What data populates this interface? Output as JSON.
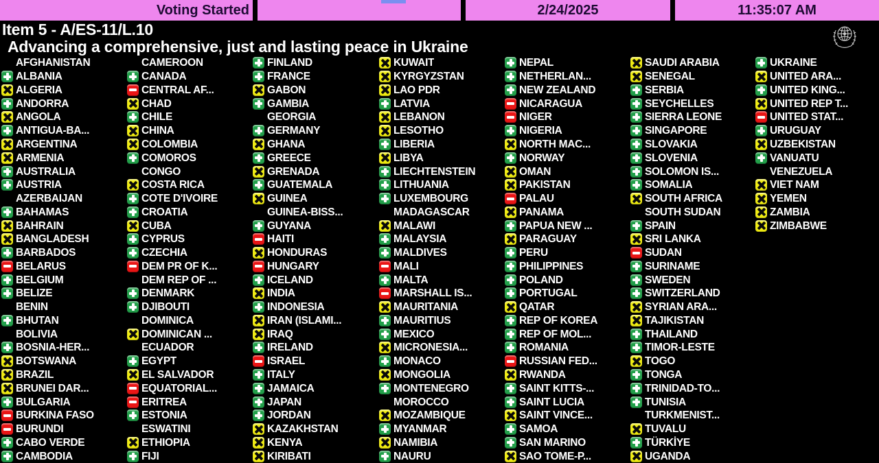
{
  "header": {
    "status": "Voting Started",
    "date": "2/24/2025",
    "time": "11:35:07 AM"
  },
  "title": {
    "item": "Item 5 - A/ES-11/L.10",
    "subtitle": "Advancing a comprehensive, just and lasting peace in Ukraine"
  },
  "icons": {
    "un_emblem": "united-nations-emblem",
    "yes": "green-plus-icon",
    "abstain": "yellow-x-icon",
    "no": "red-minus-icon"
  },
  "colors": {
    "bar_magenta": "#ee86ee",
    "bar_text": "#1d0a33",
    "background": "#000000",
    "text": "#ffffff",
    "vote_yes_green": "#22a04a",
    "vote_abstain_yellow": "#f0ec12",
    "vote_no_red": "#ea1515",
    "blue_mark": "#7a8ff0"
  },
  "columns": [
    [
      {
        "name": "AFGHANISTAN",
        "vote": null
      },
      {
        "name": "ALBANIA",
        "vote": "yes"
      },
      {
        "name": "ALGERIA",
        "vote": "abstain"
      },
      {
        "name": "ANDORRA",
        "vote": "yes"
      },
      {
        "name": "ANGOLA",
        "vote": "abstain"
      },
      {
        "name": "ANTIGUA-BA...",
        "vote": "yes"
      },
      {
        "name": "ARGENTINA",
        "vote": "abstain"
      },
      {
        "name": "ARMENIA",
        "vote": "abstain"
      },
      {
        "name": "AUSTRALIA",
        "vote": "yes"
      },
      {
        "name": "AUSTRIA",
        "vote": "yes"
      },
      {
        "name": "AZERBAIJAN",
        "vote": null
      },
      {
        "name": "BAHAMAS",
        "vote": "yes"
      },
      {
        "name": "BAHRAIN",
        "vote": "abstain"
      },
      {
        "name": "BANGLADESH",
        "vote": "abstain"
      },
      {
        "name": "BARBADOS",
        "vote": "yes"
      },
      {
        "name": "BELARUS",
        "vote": "no"
      },
      {
        "name": "BELGIUM",
        "vote": "yes"
      },
      {
        "name": "BELIZE",
        "vote": "yes"
      },
      {
        "name": "BENIN",
        "vote": null
      },
      {
        "name": "BHUTAN",
        "vote": "yes"
      },
      {
        "name": "BOLIVIA",
        "vote": null
      },
      {
        "name": "BOSNIA-HER...",
        "vote": "yes"
      },
      {
        "name": "BOTSWANA",
        "vote": "abstain"
      },
      {
        "name": "BRAZIL",
        "vote": "abstain"
      },
      {
        "name": "BRUNEI DAR...",
        "vote": "abstain"
      },
      {
        "name": "BULGARIA",
        "vote": "yes"
      },
      {
        "name": "BURKINA FASO",
        "vote": "no"
      },
      {
        "name": "BURUNDI",
        "vote": "no"
      },
      {
        "name": "CABO VERDE",
        "vote": "yes"
      },
      {
        "name": "CAMBODIA",
        "vote": "yes"
      }
    ],
    [
      {
        "name": "CAMEROON",
        "vote": null
      },
      {
        "name": "CANADA",
        "vote": "yes"
      },
      {
        "name": "CENTRAL AF...",
        "vote": "no"
      },
      {
        "name": "CHAD",
        "vote": "abstain"
      },
      {
        "name": "CHILE",
        "vote": "yes"
      },
      {
        "name": "CHINA",
        "vote": "abstain"
      },
      {
        "name": "COLOMBIA",
        "vote": "abstain"
      },
      {
        "name": "COMOROS",
        "vote": "yes"
      },
      {
        "name": "CONGO",
        "vote": null
      },
      {
        "name": "COSTA RICA",
        "vote": "abstain"
      },
      {
        "name": "COTE D'IVOIRE",
        "vote": "yes"
      },
      {
        "name": "CROATIA",
        "vote": "yes"
      },
      {
        "name": "CUBA",
        "vote": "abstain"
      },
      {
        "name": "CYPRUS",
        "vote": "yes"
      },
      {
        "name": "CZECHIA",
        "vote": "yes"
      },
      {
        "name": "DEM PR OF K...",
        "vote": "no"
      },
      {
        "name": "DEM REP OF ...",
        "vote": null
      },
      {
        "name": "DENMARK",
        "vote": "yes"
      },
      {
        "name": "DJIBOUTI",
        "vote": "yes"
      },
      {
        "name": "DOMINICA",
        "vote": null
      },
      {
        "name": "DOMINICAN ...",
        "vote": "abstain"
      },
      {
        "name": "ECUADOR",
        "vote": null
      },
      {
        "name": "EGYPT",
        "vote": "yes"
      },
      {
        "name": "EL SALVADOR",
        "vote": "abstain"
      },
      {
        "name": "EQUATORIAL...",
        "vote": "no"
      },
      {
        "name": "ERITREA",
        "vote": "no"
      },
      {
        "name": "ESTONIA",
        "vote": "yes"
      },
      {
        "name": "ESWATINI",
        "vote": null
      },
      {
        "name": "ETHIOPIA",
        "vote": "abstain"
      },
      {
        "name": "FIJI",
        "vote": "yes"
      }
    ],
    [
      {
        "name": "FINLAND",
        "vote": "yes"
      },
      {
        "name": "FRANCE",
        "vote": "yes"
      },
      {
        "name": "GABON",
        "vote": "abstain"
      },
      {
        "name": "GAMBIA",
        "vote": "yes"
      },
      {
        "name": "GEORGIA",
        "vote": null
      },
      {
        "name": "GERMANY",
        "vote": "yes"
      },
      {
        "name": "GHANA",
        "vote": "abstain"
      },
      {
        "name": "GREECE",
        "vote": "yes"
      },
      {
        "name": "GRENADA",
        "vote": "abstain"
      },
      {
        "name": "GUATEMALA",
        "vote": "yes"
      },
      {
        "name": "GUINEA",
        "vote": "abstain"
      },
      {
        "name": "GUINEA-BISS...",
        "vote": null
      },
      {
        "name": "GUYANA",
        "vote": "yes"
      },
      {
        "name": "HAITI",
        "vote": "no"
      },
      {
        "name": "HONDURAS",
        "vote": "abstain"
      },
      {
        "name": "HUNGARY",
        "vote": "no"
      },
      {
        "name": "ICELAND",
        "vote": "yes"
      },
      {
        "name": "INDIA",
        "vote": "abstain"
      },
      {
        "name": "INDONESIA",
        "vote": "yes"
      },
      {
        "name": "IRAN (ISLAMI...",
        "vote": "abstain"
      },
      {
        "name": "IRAQ",
        "vote": "abstain"
      },
      {
        "name": "IRELAND",
        "vote": "yes"
      },
      {
        "name": "ISRAEL",
        "vote": "no"
      },
      {
        "name": "ITALY",
        "vote": "yes"
      },
      {
        "name": "JAMAICA",
        "vote": "yes"
      },
      {
        "name": "JAPAN",
        "vote": "yes"
      },
      {
        "name": "JORDAN",
        "vote": "yes"
      },
      {
        "name": "KAZAKHSTAN",
        "vote": "abstain"
      },
      {
        "name": "KENYA",
        "vote": "abstain"
      },
      {
        "name": "KIRIBATI",
        "vote": "abstain"
      }
    ],
    [
      {
        "name": "KUWAIT",
        "vote": "abstain"
      },
      {
        "name": "KYRGYZSTAN",
        "vote": "abstain"
      },
      {
        "name": "LAO PDR",
        "vote": "abstain"
      },
      {
        "name": "LATVIA",
        "vote": "yes"
      },
      {
        "name": "LEBANON",
        "vote": "abstain"
      },
      {
        "name": "LESOTHO",
        "vote": "abstain"
      },
      {
        "name": "LIBERIA",
        "vote": "yes"
      },
      {
        "name": "LIBYA",
        "vote": "abstain"
      },
      {
        "name": "LIECHTENSTEIN",
        "vote": "yes"
      },
      {
        "name": "LITHUANIA",
        "vote": "yes"
      },
      {
        "name": "LUXEMBOURG",
        "vote": "yes"
      },
      {
        "name": "MADAGASCAR",
        "vote": null
      },
      {
        "name": "MALAWI",
        "vote": "abstain"
      },
      {
        "name": "MALAYSIA",
        "vote": "yes"
      },
      {
        "name": "MALDIVES",
        "vote": "yes"
      },
      {
        "name": "MALI",
        "vote": "no"
      },
      {
        "name": "MALTA",
        "vote": "yes"
      },
      {
        "name": "MARSHALL IS...",
        "vote": "no"
      },
      {
        "name": "MAURITANIA",
        "vote": "abstain"
      },
      {
        "name": "MAURITIUS",
        "vote": "yes"
      },
      {
        "name": "MEXICO",
        "vote": "yes"
      },
      {
        "name": "MICRONESIA...",
        "vote": "abstain"
      },
      {
        "name": "MONACO",
        "vote": "yes"
      },
      {
        "name": "MONGOLIA",
        "vote": "abstain"
      },
      {
        "name": "MONTENEGRO",
        "vote": "yes"
      },
      {
        "name": "MOROCCO",
        "vote": null
      },
      {
        "name": "MOZAMBIQUE",
        "vote": "abstain"
      },
      {
        "name": "MYANMAR",
        "vote": "yes"
      },
      {
        "name": "NAMIBIA",
        "vote": "abstain"
      },
      {
        "name": "NAURU",
        "vote": "yes"
      }
    ],
    [
      {
        "name": "NEPAL",
        "vote": "yes"
      },
      {
        "name": "NETHERLAN...",
        "vote": "yes"
      },
      {
        "name": "NEW ZEALAND",
        "vote": "yes"
      },
      {
        "name": "NICARAGUA",
        "vote": "no"
      },
      {
        "name": "NIGER",
        "vote": "no"
      },
      {
        "name": "NIGERIA",
        "vote": "yes"
      },
      {
        "name": "NORTH MAC...",
        "vote": "abstain"
      },
      {
        "name": "NORWAY",
        "vote": "yes"
      },
      {
        "name": "OMAN",
        "vote": "abstain"
      },
      {
        "name": "PAKISTAN",
        "vote": "abstain"
      },
      {
        "name": "PALAU",
        "vote": "no"
      },
      {
        "name": "PANAMA",
        "vote": "abstain"
      },
      {
        "name": "PAPUA NEW ...",
        "vote": "yes"
      },
      {
        "name": "PARAGUAY",
        "vote": "abstain"
      },
      {
        "name": "PERU",
        "vote": "yes"
      },
      {
        "name": "PHILIPPINES",
        "vote": "yes"
      },
      {
        "name": "POLAND",
        "vote": "yes"
      },
      {
        "name": "PORTUGAL",
        "vote": "yes"
      },
      {
        "name": "QATAR",
        "vote": "abstain"
      },
      {
        "name": "REP OF KOREA",
        "vote": "yes"
      },
      {
        "name": "REP OF MOL...",
        "vote": "yes"
      },
      {
        "name": "ROMANIA",
        "vote": "yes"
      },
      {
        "name": "RUSSIAN FED...",
        "vote": "no"
      },
      {
        "name": "RWANDA",
        "vote": "abstain"
      },
      {
        "name": "SAINT KITTS-...",
        "vote": "yes"
      },
      {
        "name": "SAINT LUCIA",
        "vote": "yes"
      },
      {
        "name": "SAINT VINCE...",
        "vote": "abstain"
      },
      {
        "name": "SAMOA",
        "vote": "yes"
      },
      {
        "name": "SAN MARINO",
        "vote": "yes"
      },
      {
        "name": "SAO TOME-P...",
        "vote": "abstain"
      }
    ],
    [
      {
        "name": "SAUDI ARABIA",
        "vote": "abstain"
      },
      {
        "name": "SENEGAL",
        "vote": "abstain"
      },
      {
        "name": "SERBIA",
        "vote": "yes"
      },
      {
        "name": "SEYCHELLES",
        "vote": "yes"
      },
      {
        "name": "SIERRA LEONE",
        "vote": "yes"
      },
      {
        "name": "SINGAPORE",
        "vote": "yes"
      },
      {
        "name": "SLOVAKIA",
        "vote": "yes"
      },
      {
        "name": "SLOVENIA",
        "vote": "yes"
      },
      {
        "name": "SOLOMON IS...",
        "vote": "yes"
      },
      {
        "name": "SOMALIA",
        "vote": "yes"
      },
      {
        "name": "SOUTH AFRICA",
        "vote": "abstain"
      },
      {
        "name": "SOUTH SUDAN",
        "vote": null
      },
      {
        "name": "SPAIN",
        "vote": "yes"
      },
      {
        "name": "SRI LANKA",
        "vote": "abstain"
      },
      {
        "name": "SUDAN",
        "vote": "no"
      },
      {
        "name": "SURINAME",
        "vote": "yes"
      },
      {
        "name": "SWEDEN",
        "vote": "yes"
      },
      {
        "name": "SWITZERLAND",
        "vote": "yes"
      },
      {
        "name": "SYRIAN ARA...",
        "vote": "abstain"
      },
      {
        "name": "TAJIKISTAN",
        "vote": "abstain"
      },
      {
        "name": "THAILAND",
        "vote": "yes"
      },
      {
        "name": "TIMOR-LESTE",
        "vote": "yes"
      },
      {
        "name": "TOGO",
        "vote": "abstain"
      },
      {
        "name": "TONGA",
        "vote": "yes"
      },
      {
        "name": "TRINIDAD-TO...",
        "vote": "yes"
      },
      {
        "name": "TUNISIA",
        "vote": "yes"
      },
      {
        "name": "TURKMENIST...",
        "vote": null
      },
      {
        "name": "TUVALU",
        "vote": "abstain"
      },
      {
        "name": "TÜRKİYE",
        "vote": "yes"
      },
      {
        "name": "UGANDA",
        "vote": "abstain"
      }
    ],
    [
      {
        "name": "UKRAINE",
        "vote": "yes"
      },
      {
        "name": "UNITED ARA...",
        "vote": "abstain"
      },
      {
        "name": "UNITED KING...",
        "vote": "yes"
      },
      {
        "name": "UNITED REP T...",
        "vote": "abstain"
      },
      {
        "name": "UNITED STAT...",
        "vote": "no"
      },
      {
        "name": "URUGUAY",
        "vote": "yes"
      },
      {
        "name": "UZBEKISTAN",
        "vote": "abstain"
      },
      {
        "name": "VANUATU",
        "vote": "yes"
      },
      {
        "name": "VENEZUELA",
        "vote": null
      },
      {
        "name": "VIET NAM",
        "vote": "abstain"
      },
      {
        "name": "YEMEN",
        "vote": "abstain"
      },
      {
        "name": "ZAMBIA",
        "vote": "abstain"
      },
      {
        "name": "ZIMBABWE",
        "vote": "abstain"
      }
    ]
  ]
}
